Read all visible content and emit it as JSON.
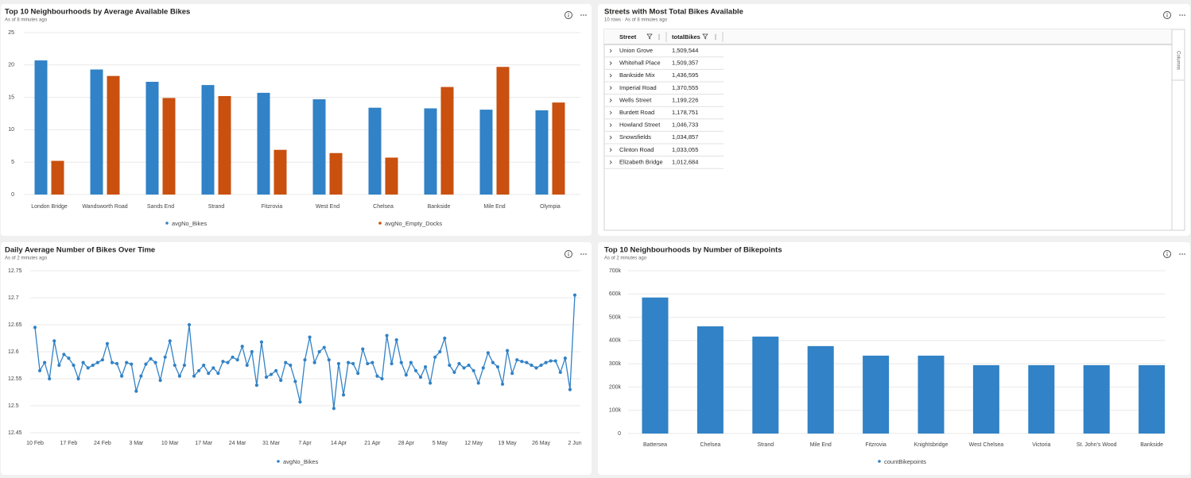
{
  "chart_data": [
    {
      "type": "bar",
      "title": "Top 10 Neighbourhoods by Average Available Bikes",
      "subtitle": "As of 8 minutes ago",
      "categories": [
        "London Bridge",
        "Wandsworth Road",
        "Sands End",
        "Strand",
        "Fitzrovia",
        "West End",
        "Chelsea",
        "Bankside",
        "Mile End",
        "Olympia"
      ],
      "series": [
        {
          "name": "avgNo_Bikes",
          "color": "#3182c6",
          "values": [
            20.7,
            19.3,
            17.4,
            16.9,
            15.7,
            14.7,
            13.4,
            13.3,
            13.1,
            13.0
          ]
        },
        {
          "name": "avgNo_Empty_Docks",
          "color": "#c9500f",
          "values": [
            5.2,
            18.3,
            14.9,
            15.2,
            6.9,
            6.4,
            5.7,
            16.6,
            19.7,
            14.2
          ]
        }
      ],
      "ylim": [
        0,
        25
      ],
      "yticks": [
        0,
        5,
        10,
        15,
        20,
        25
      ],
      "grid": true,
      "legend": "bottom"
    },
    {
      "type": "line",
      "title": "Daily Average Number of Bikes Over Time",
      "subtitle": "As of 2 minutes ago",
      "categories": [
        "10 Feb",
        null,
        null,
        null,
        null,
        null,
        null,
        "17 Feb",
        null,
        null,
        null,
        null,
        null,
        null,
        "24 Feb",
        null,
        null,
        null,
        null,
        null,
        null,
        "3 Mar",
        null,
        null,
        null,
        null,
        null,
        null,
        "10 Mar",
        null,
        null,
        null,
        null,
        null,
        null,
        "17 Mar",
        null,
        null,
        null,
        null,
        null,
        null,
        "24 Mar",
        null,
        null,
        null,
        null,
        null,
        null,
        "31 Mar",
        null,
        null,
        null,
        null,
        null,
        null,
        "7 Apr",
        null,
        null,
        null,
        null,
        null,
        null,
        "14 Apr",
        null,
        null,
        null,
        null,
        null,
        null,
        "21 Apr",
        null,
        null,
        null,
        null,
        null,
        null,
        "28 Apr",
        null,
        null,
        null,
        null,
        null,
        null,
        "5 May",
        null,
        null,
        null,
        null,
        null,
        null,
        "12 May",
        null,
        null,
        null,
        null,
        null,
        null,
        "19 May",
        null,
        null,
        null,
        null,
        null,
        null,
        "26 May",
        null,
        null,
        null,
        null,
        null,
        null,
        "2 Jun"
      ],
      "series": [
        {
          "name": "avgNo_Bikes",
          "color": "#3182c6",
          "values": [
            12.645,
            12.565,
            12.58,
            12.55,
            12.62,
            12.575,
            12.595,
            12.588,
            12.575,
            12.55,
            12.58,
            12.57,
            12.575,
            12.58,
            12.585,
            12.615,
            12.58,
            12.578,
            12.555,
            12.58,
            12.577,
            12.527,
            12.555,
            12.577,
            12.587,
            12.58,
            12.547,
            12.59,
            12.62,
            12.575,
            12.555,
            12.575,
            12.65,
            12.555,
            12.565,
            12.575,
            12.56,
            12.57,
            12.56,
            12.582,
            12.58,
            12.59,
            12.585,
            12.61,
            12.575,
            12.6,
            12.538,
            12.618,
            12.553,
            12.558,
            12.565,
            12.547,
            12.58,
            12.575,
            12.545,
            12.507,
            12.585,
            12.627,
            12.58,
            12.6,
            12.608,
            12.585,
            12.495,
            12.578,
            12.52,
            12.58,
            12.578,
            12.56,
            12.605,
            12.578,
            12.58,
            12.555,
            12.55,
            12.63,
            12.578,
            12.622,
            12.58,
            12.557,
            12.58,
            12.565,
            12.553,
            12.572,
            12.542,
            12.59,
            12.6,
            12.625,
            12.575,
            12.562,
            12.578,
            12.57,
            12.575,
            12.565,
            12.542,
            12.57,
            12.598,
            12.58,
            12.572,
            12.54,
            12.602,
            12.56,
            12.585,
            12.582,
            12.58,
            12.575,
            12.57,
            12.575,
            12.58,
            12.583,
            12.583,
            12.562,
            12.588,
            12.53,
            12.705
          ]
        }
      ],
      "ylim": [
        12.45,
        12.75
      ],
      "yticks": [
        12.45,
        12.5,
        12.55,
        12.6,
        12.65,
        12.7,
        12.75
      ],
      "grid": true,
      "legend": "bottom"
    },
    {
      "type": "bar",
      "title": "Top 10 Neighbourhoods by Number of Bikepoints",
      "subtitle": "As of 2 minutes ago",
      "categories": [
        "Battersea",
        "Chelsea",
        "Strand",
        "Mile End",
        "Fitzrovia",
        "Knightsbridge",
        "West Chelsea",
        "Victoria",
        "St. John's Wood",
        "Bankside"
      ],
      "series": [
        {
          "name": "countBikepoints",
          "color": "#3182c6",
          "values": [
            585000,
            461000,
            417000,
            376000,
            335000,
            335000,
            294000,
            294000,
            294000,
            294000
          ]
        }
      ],
      "ylim": [
        0,
        700000
      ],
      "yticks": [
        0,
        {
          "value": 100000,
          "label": "100k"
        },
        {
          "value": 200000,
          "label": "200k"
        },
        {
          "value": 300000,
          "label": "300k"
        },
        {
          "value": 400000,
          "label": "400k"
        },
        {
          "value": 500000,
          "label": "500k"
        },
        {
          "value": 600000,
          "label": "600k"
        },
        {
          "value": 700000,
          "label": "700k"
        }
      ],
      "grid": true,
      "legend": "bottom"
    }
  ],
  "table": {
    "title": "Streets with Most Total Bikes Available",
    "subtitle": "10 rows · As of 8 minutes ago",
    "columns": [
      "Street",
      "totalBikes"
    ],
    "side_tab": "Columns",
    "rows": [
      [
        "Union Grove",
        "1,509,544"
      ],
      [
        "Whitehall Place",
        "1,509,357"
      ],
      [
        "Bankside Mix",
        "1,436,595"
      ],
      [
        "Imperial Road",
        "1,370,555"
      ],
      [
        "Wells Street",
        "1,199,226"
      ],
      [
        "Burdett Road",
        "1,178,751"
      ],
      [
        "Howland Street",
        "1,046,733"
      ],
      [
        "Snowsfields",
        "1,034,857"
      ],
      [
        "Clinton Road",
        "1,033,055"
      ],
      [
        "Elizabeth Bridge",
        "1,012,684"
      ]
    ]
  }
}
